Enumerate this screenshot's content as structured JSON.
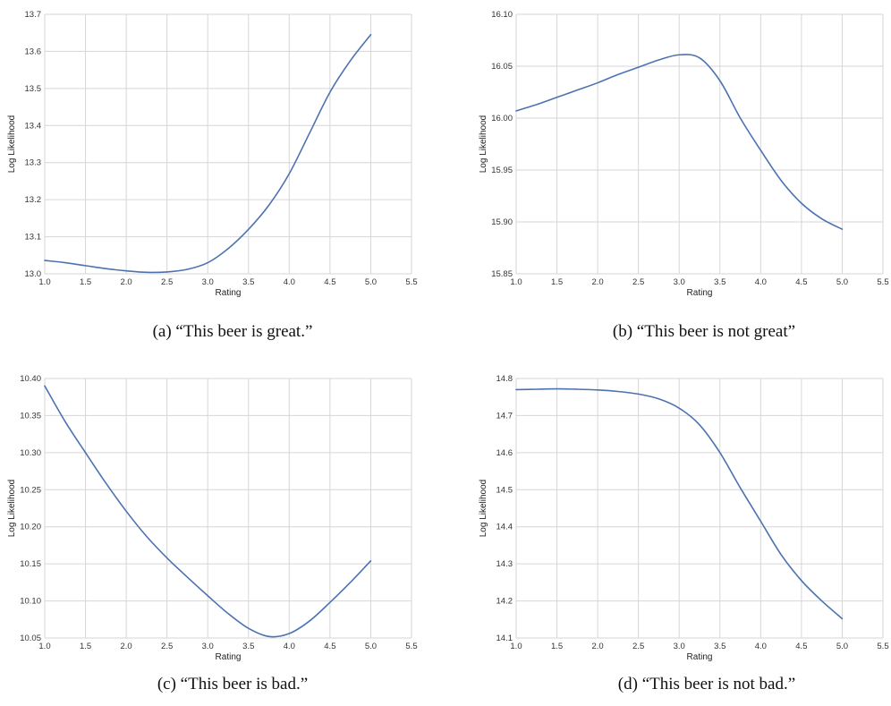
{
  "panels": [
    {
      "caption": "(a) “This beer is great.”",
      "chart_data": {
        "type": "line",
        "xlabel": "Rating",
        "ylabel": "Log Likelihood",
        "xlim": [
          1.0,
          5.5
        ],
        "ylim": [
          13.0,
          13.7
        ],
        "xticks": [
          "1.0",
          "1.5",
          "2.0",
          "2.5",
          "3.0",
          "3.5",
          "4.0",
          "4.5",
          "5.0",
          "5.5"
        ],
        "yticks": [
          "13.0",
          "13.1",
          "13.2",
          "13.3",
          "13.4",
          "13.5",
          "13.6",
          "13.7"
        ],
        "grid": true,
        "line_color": "#4c72b0",
        "series": [
          {
            "x": [
              1.0,
              1.25,
              1.5,
              1.75,
              2.0,
              2.25,
              2.5,
              2.75,
              3.0,
              3.25,
              3.5,
              3.75,
              4.0,
              4.25,
              4.5,
              4.75,
              5.0
            ],
            "y": [
              13.036,
              13.03,
              13.022,
              13.014,
              13.008,
              13.004,
              13.005,
              13.012,
              13.03,
              13.068,
              13.12,
              13.185,
              13.27,
              13.38,
              13.49,
              13.575,
              13.645
            ]
          }
        ]
      }
    },
    {
      "caption": "(b) “This beer is not great”",
      "chart_data": {
        "type": "line",
        "xlabel": "Rating",
        "ylabel": "Log Likelihood",
        "xlim": [
          1.0,
          5.5
        ],
        "ylim": [
          15.85,
          16.1
        ],
        "xticks": [
          "1.0",
          "1.5",
          "2.0",
          "2.5",
          "3.0",
          "3.5",
          "4.0",
          "4.5",
          "5.0",
          "5.5"
        ],
        "yticks": [
          "15.85",
          "15.90",
          "15.95",
          "16.00",
          "16.05",
          "16.10"
        ],
        "grid": true,
        "line_color": "#4c72b0",
        "series": [
          {
            "x": [
              1.0,
              1.25,
              1.5,
              1.75,
              2.0,
              2.25,
              2.5,
              2.75,
              3.0,
              3.25,
              3.5,
              3.75,
              4.0,
              4.25,
              4.5,
              4.75,
              5.0
            ],
            "y": [
              16.007,
              16.013,
              16.02,
              16.027,
              16.034,
              16.042,
              16.049,
              16.056,
              16.061,
              16.058,
              16.036,
              16.0,
              15.969,
              15.94,
              15.918,
              15.903,
              15.893
            ]
          }
        ]
      }
    },
    {
      "caption": "(c) “This beer is bad.”",
      "chart_data": {
        "type": "line",
        "xlabel": "Rating",
        "ylabel": "Log Likelihood",
        "xlim": [
          1.0,
          5.5
        ],
        "ylim": [
          10.05,
          10.4
        ],
        "xticks": [
          "1.0",
          "1.5",
          "2.0",
          "2.5",
          "3.0",
          "3.5",
          "4.0",
          "4.5",
          "5.0",
          "5.5"
        ],
        "yticks": [
          "10.05",
          "10.10",
          "10.15",
          "10.20",
          "10.25",
          "10.30",
          "10.35",
          "10.40"
        ],
        "grid": true,
        "line_color": "#4c72b0",
        "series": [
          {
            "x": [
              1.0,
              1.25,
              1.5,
              1.75,
              2.0,
              2.25,
              2.5,
              2.75,
              3.0,
              3.25,
              3.5,
              3.75,
              4.0,
              4.25,
              4.5,
              4.75,
              5.0
            ],
            "y": [
              10.39,
              10.342,
              10.3,
              10.259,
              10.221,
              10.187,
              10.158,
              10.132,
              10.107,
              10.083,
              10.063,
              10.052,
              10.056,
              10.073,
              10.098,
              10.125,
              10.154
            ]
          }
        ]
      }
    },
    {
      "caption": "(d) “This beer is not bad.”",
      "chart_data": {
        "type": "line",
        "xlabel": "Rating",
        "ylabel": "Log Likelihood",
        "xlim": [
          1.0,
          5.5
        ],
        "ylim": [
          14.1,
          14.8
        ],
        "xticks": [
          "1.0",
          "1.5",
          "2.0",
          "2.5",
          "3.0",
          "3.5",
          "4.0",
          "4.5",
          "5.0",
          "5.5"
        ],
        "yticks": [
          "14.1",
          "14.2",
          "14.3",
          "14.4",
          "14.5",
          "14.6",
          "14.7",
          "14.8"
        ],
        "grid": true,
        "line_color": "#4c72b0",
        "series": [
          {
            "x": [
              1.0,
              1.25,
              1.5,
              1.75,
              2.0,
              2.25,
              2.5,
              2.75,
              3.0,
              3.25,
              3.5,
              3.75,
              4.0,
              4.25,
              4.5,
              4.75,
              5.0
            ],
            "y": [
              14.77,
              14.771,
              14.772,
              14.771,
              14.769,
              14.765,
              14.758,
              14.745,
              14.72,
              14.675,
              14.6,
              14.505,
              14.415,
              14.325,
              14.255,
              14.2,
              14.152
            ]
          }
        ]
      }
    }
  ]
}
